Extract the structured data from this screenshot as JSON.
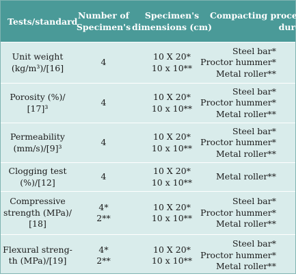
{
  "table": {
    "headers": [
      "Tests/standard",
      "Number of Specimen's",
      "Specimen's dimensions (cm)",
      "Compacting proce- dure"
    ],
    "header_lines": [
      [
        "Tests/standard"
      ],
      [
        "Number of",
        "Specimen's"
      ],
      [
        "Specimen's",
        "dimensions (cm)"
      ],
      [
        "Compacting proce-",
        "dure"
      ]
    ],
    "rows": [
      {
        "test": [
          "Unit weight",
          "(kg/m³)/[16]"
        ],
        "number": [
          "4"
        ],
        "dimensions": [
          "10 X 20*",
          "10 x 10**"
        ],
        "procedure": [
          "Steel bar*",
          "Proctor hummer*",
          "Metal roller**"
        ]
      },
      {
        "test": [
          "Porosity (%)/",
          "[17]³"
        ],
        "number": [
          "4"
        ],
        "dimensions": [
          "10 X 20*",
          "10 x 10**"
        ],
        "procedure": [
          "Steel bar*",
          "Proctor hummer*",
          "Metal roller**"
        ]
      },
      {
        "test": [
          "Permeability",
          "(mm/s)/[9]³"
        ],
        "number": [
          "4"
        ],
        "dimensions": [
          "10 X 20*",
          "10 x 10**"
        ],
        "procedure": [
          "Steel bar*",
          "Proctor hummer*",
          "Metal roller**"
        ]
      },
      {
        "test": [
          "Clogging test",
          "(%)/[12]"
        ],
        "number": [
          "4"
        ],
        "dimensions": [
          "10 X 20*",
          "10 x 10**"
        ],
        "procedure": [
          "Metal roller**"
        ]
      },
      {
        "test": [
          "Compressive",
          "strength (MPa)/",
          "[18]"
        ],
        "number": [
          "4*",
          "2**"
        ],
        "dimensions": [
          "10 X 20*",
          "10 x 10**"
        ],
        "procedure": [
          "Steel bar*",
          "Proctor hummer*",
          "Metal roller**"
        ]
      },
      {
        "test": [
          "Flexural streng-",
          "th (MPa)/[19]"
        ],
        "number": [
          "4*",
          "2**"
        ],
        "dimensions": [
          "10 X 20*",
          "10 x 10**"
        ],
        "procedure": [
          "Steel bar*",
          "Proctor hummer*",
          "Metal roller**"
        ]
      }
    ]
  },
  "colors": {
    "header_background": "#4a9a98",
    "row_background": "#d9eceb",
    "row_divider": "#ffffff"
  }
}
